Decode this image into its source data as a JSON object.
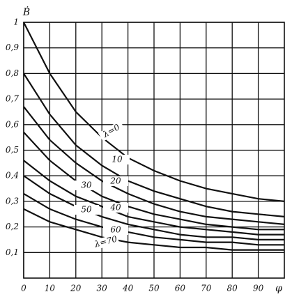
{
  "chart_data": {
    "type": "line",
    "y_label": "Ḃ",
    "x_label": "φ",
    "x": [
      0,
      10,
      20,
      30,
      40,
      50,
      60,
      70,
      80,
      90,
      100
    ],
    "series": [
      {
        "name": "λ=0",
        "color": "#111111",
        "values": [
          1.0,
          0.8,
          0.65,
          0.55,
          0.47,
          0.42,
          0.38,
          0.35,
          0.33,
          0.31,
          0.3
        ]
      },
      {
        "name": "10",
        "color": "#111111",
        "values": [
          0.8,
          0.64,
          0.52,
          0.44,
          0.38,
          0.34,
          0.31,
          0.28,
          0.26,
          0.25,
          0.24
        ]
      },
      {
        "name": "20",
        "color": "#111111",
        "values": [
          0.67,
          0.54,
          0.45,
          0.38,
          0.33,
          0.29,
          0.26,
          0.24,
          0.23,
          0.22,
          0.21
        ]
      },
      {
        "name": "30",
        "color": "#111111",
        "values": [
          0.57,
          0.46,
          0.38,
          0.32,
          0.28,
          0.25,
          0.23,
          0.21,
          0.2,
          0.19,
          0.19
        ]
      },
      {
        "name": "40",
        "color": "#111111",
        "values": [
          0.46,
          0.38,
          0.32,
          0.28,
          0.24,
          0.22,
          0.2,
          0.19,
          0.18,
          0.17,
          0.17
        ]
      },
      {
        "name": "50",
        "color": "#111111",
        "values": [
          0.4,
          0.33,
          0.28,
          0.24,
          0.21,
          0.19,
          0.17,
          0.16,
          0.16,
          0.15,
          0.15
        ]
      },
      {
        "name": "60",
        "color": "#111111",
        "values": [
          0.33,
          0.27,
          0.23,
          0.2,
          0.18,
          0.16,
          0.15,
          0.14,
          0.14,
          0.13,
          0.13
        ]
      },
      {
        "name": "λ=70",
        "color": "#111111",
        "values": [
          0.27,
          0.22,
          0.19,
          0.16,
          0.14,
          0.13,
          0.12,
          0.12,
          0.11,
          0.11,
          0.11
        ]
      }
    ],
    "xlim": [
      0,
      100
    ],
    "xticks": [
      0,
      10,
      20,
      30,
      40,
      50,
      60,
      70,
      80,
      90
    ],
    "ylim": [
      0,
      1
    ],
    "yticks": [
      {
        "value": 0.1,
        "label": "0,1"
      },
      {
        "value": 0.2,
        "label": "0,2"
      },
      {
        "value": 0.3,
        "label": "0,3"
      },
      {
        "value": 0.4,
        "label": "0,4"
      },
      {
        "value": 0.5,
        "label": "0,5"
      },
      {
        "value": 0.6,
        "label": "0,6"
      },
      {
        "value": 0.7,
        "label": "0,7"
      },
      {
        "value": 0.8,
        "label": "0,8"
      },
      {
        "value": 0.9,
        "label": "0,9"
      },
      1
    ],
    "grid": true
  }
}
